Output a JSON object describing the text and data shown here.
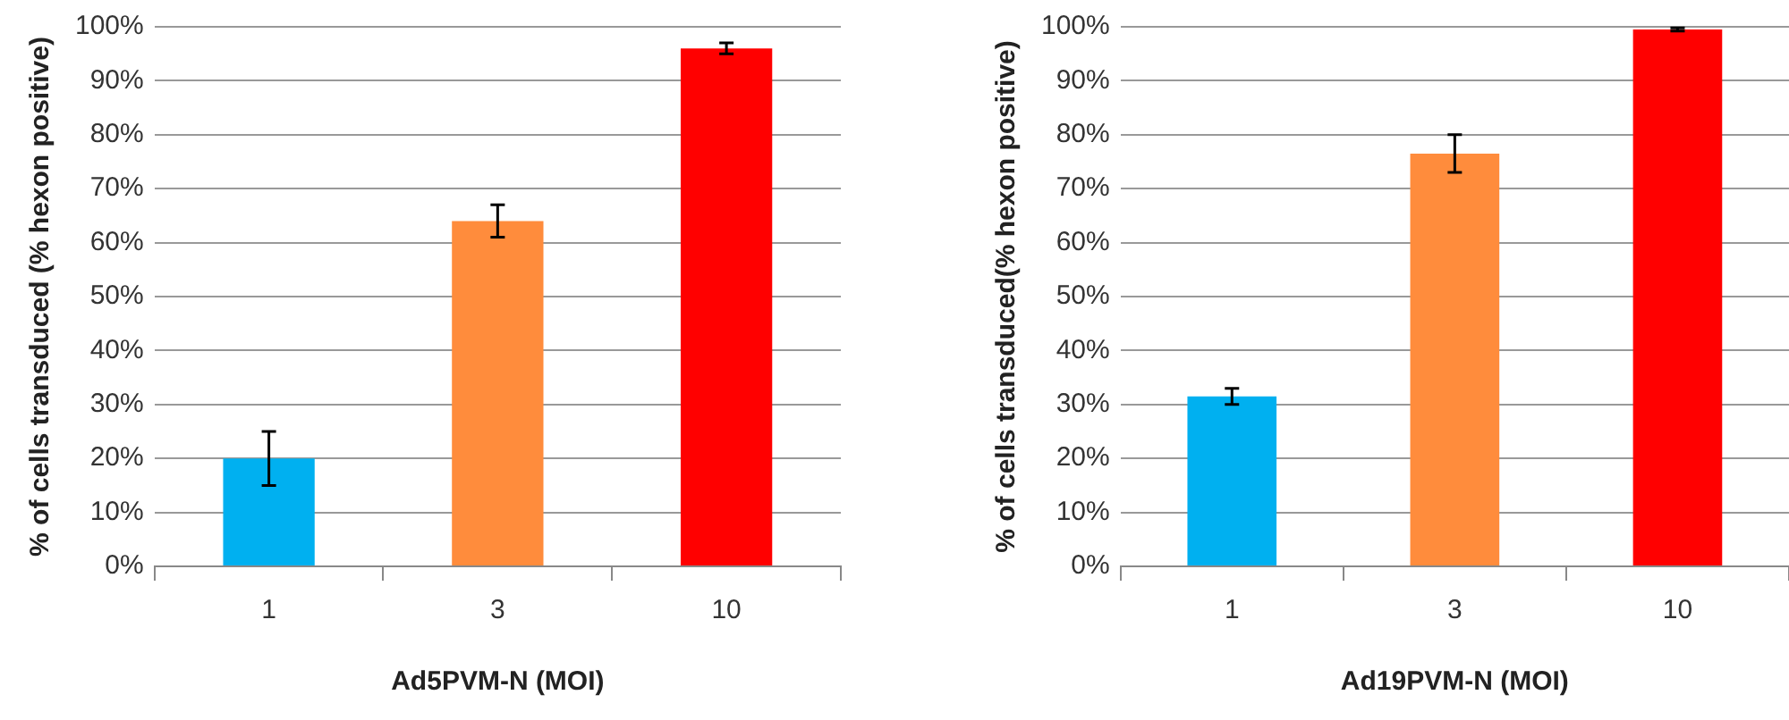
{
  "chart_data": [
    {
      "type": "bar",
      "xlabel": "Ad5PVM-N (MOI)",
      "ylabel": "% of cells transduced (% hexon positive)",
      "categories": [
        "1",
        "3",
        "10"
      ],
      "values": [
        20,
        64,
        96
      ],
      "colors": [
        "#00b0f0",
        "#ff8c3c",
        "#ff0000"
      ],
      "errors": [
        5,
        3,
        1
      ],
      "ylim": [
        0,
        100
      ],
      "yticks": [
        {
          "value": 0,
          "label": "0%"
        },
        {
          "value": 10,
          "label": "10%"
        },
        {
          "value": 20,
          "label": "20%"
        },
        {
          "value": 30,
          "label": "30%"
        },
        {
          "value": 40,
          "label": "40%"
        },
        {
          "value": 50,
          "label": "50%"
        },
        {
          "value": 60,
          "label": "60%"
        },
        {
          "value": 70,
          "label": "70%"
        },
        {
          "value": 80,
          "label": "80%"
        },
        {
          "value": 90,
          "label": "90%"
        },
        {
          "value": 100,
          "label": "100%"
        }
      ],
      "grid": "y",
      "legend": false
    },
    {
      "type": "bar",
      "xlabel": "Ad19PVM-N (MOI)",
      "ylabel": "% of cells transduced(% hexon positive)",
      "categories": [
        "1",
        "3",
        "10"
      ],
      "values": [
        31.5,
        76.5,
        99.5
      ],
      "colors": [
        "#00b0f0",
        "#ff8c3c",
        "#ff0000"
      ],
      "errors": [
        1.5,
        3.5,
        0.3
      ],
      "ylim": [
        0,
        100
      ],
      "yticks": [
        {
          "value": 0,
          "label": "0%"
        },
        {
          "value": 10,
          "label": "10%"
        },
        {
          "value": 20,
          "label": "20%"
        },
        {
          "value": 30,
          "label": "30%"
        },
        {
          "value": 40,
          "label": "40%"
        },
        {
          "value": 50,
          "label": "50%"
        },
        {
          "value": 60,
          "label": "60%"
        },
        {
          "value": 70,
          "label": "70%"
        },
        {
          "value": 80,
          "label": "80%"
        },
        {
          "value": 90,
          "label": "90%"
        },
        {
          "value": 100,
          "label": "100%"
        }
      ],
      "grid": "y",
      "legend": false
    }
  ]
}
